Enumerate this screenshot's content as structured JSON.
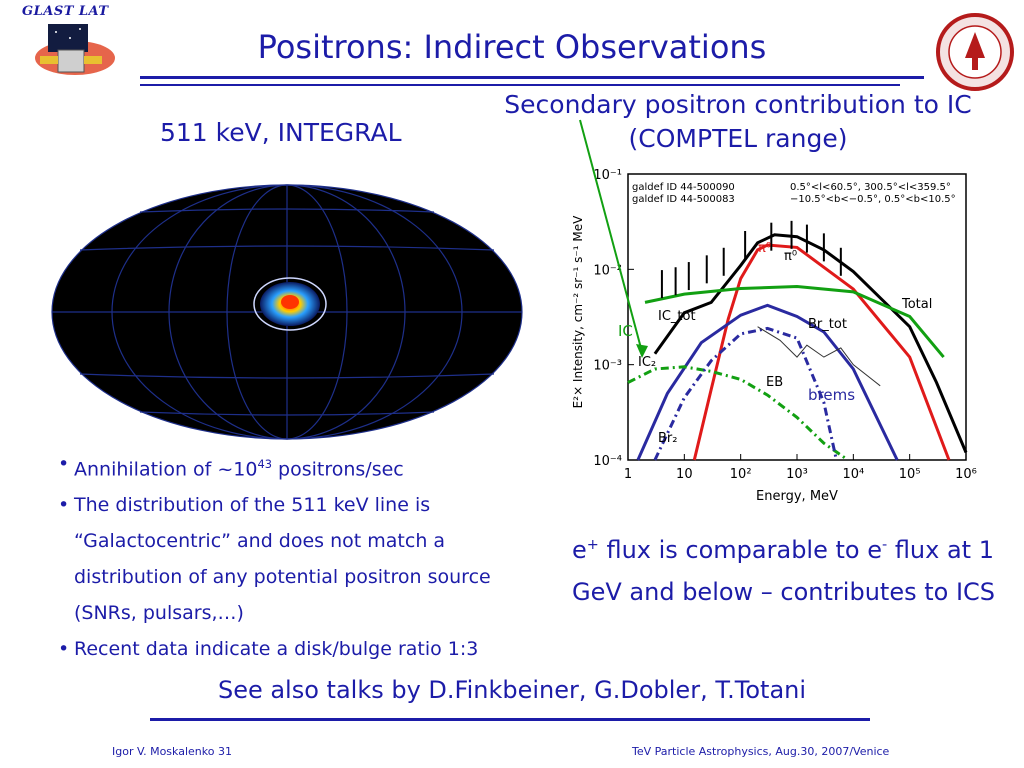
{
  "logo": {
    "text": "GLAST LAT"
  },
  "title": "Positrons: Indirect Observations",
  "left_heading": "511 keV, INTEGRAL",
  "right_heading_line1": "Secondary positron contribution to IC",
  "right_heading_line2": "(COMPTEL range)",
  "bullets": [
    {
      "pre": "Annihilation of ~10",
      "sup": "43",
      "post": " positrons/sec"
    },
    {
      "text": "The distribution of the 511 keV line is “Galactocentric” and does not match a distribution of any potential positron source (SNRs, pulsars,…)"
    },
    {
      "text": "Recent data indicate a disk/bulge ratio 1:3"
    }
  ],
  "flux": {
    "a": "e",
    "a_sup": "+",
    "b": " flux is comparable to e",
    "b_sup": "-",
    "c": " flux at 1 GeV and below – contributes to ICS"
  },
  "see_also": "See also talks by D.Finkbeiner, G.Dobler, T.Totani",
  "footer": {
    "left": "Igor V. Moskalenko  31",
    "right": "TeV Particle Astrophysics, Aug.30, 2007/Venice"
  },
  "chart_data": {
    "type": "line",
    "xlabel": "Energy, MeV",
    "ylabel": "E²× Intensity, cm⁻² sr⁻¹ s⁻¹ MeV",
    "x_scale": "log",
    "y_scale": "log",
    "xlim": [
      1,
      1000000
    ],
    "ylim": [
      0.0001,
      0.1
    ],
    "x_ticks": [
      "1",
      "10",
      "10²",
      "10³",
      "10⁴",
      "10⁵",
      "10⁶"
    ],
    "y_ticks": [
      "10⁻¹",
      "10⁻²",
      "10⁻³",
      "10⁻⁴"
    ],
    "legend_left": [
      "galdef ID 44-500090",
      "galdef ID 44-500083"
    ],
    "legend_right": [
      "0.5°<l<60.5°, 300.5°<l<359.5°",
      "−10.5°<b<−0.5°, 0.5°<b<10.5°"
    ],
    "annotations": [
      "π⁰",
      "π⁰",
      "Total",
      "IC",
      "IC_tot",
      "Br_tot",
      "IC₂",
      "EB",
      "brems",
      "Br₂"
    ],
    "series": [
      {
        "name": "Total",
        "color": "#000000",
        "x": [
          3,
          10,
          30,
          100,
          200,
          400,
          1000,
          3000,
          10000,
          100000,
          300000,
          1000000
        ],
        "y": [
          0.0013,
          0.0035,
          0.0045,
          0.011,
          0.019,
          0.023,
          0.022,
          0.016,
          0.0095,
          0.0025,
          0.00065,
          0.00012
        ]
      },
      {
        "name": "π⁰",
        "color": "#e01a1a",
        "x": [
          15,
          30,
          60,
          100,
          200,
          300,
          1000,
          10000,
          100000,
          500000
        ],
        "y": [
          0.0001,
          0.00055,
          0.003,
          0.008,
          0.016,
          0.018,
          0.017,
          0.0062,
          0.0012,
          0.0001
        ]
      },
      {
        "name": "IC_tot",
        "color": "#12a012",
        "x": [
          2,
          10,
          100,
          1000,
          10000,
          100000,
          400000
        ],
        "y": [
          0.0045,
          0.0055,
          0.0063,
          0.0066,
          0.0058,
          0.0032,
          0.0012
        ]
      },
      {
        "name": "Br_tot",
        "color": "#2a2aa0",
        "x": [
          1.5,
          5,
          20,
          100,
          300,
          1000,
          3000,
          10000,
          60000
        ],
        "y": [
          0.0001,
          0.0005,
          0.0017,
          0.0033,
          0.0042,
          0.0032,
          0.0022,
          0.0009,
          0.0001
        ]
      },
      {
        "name": "IC₂",
        "color": "#12a012",
        "x": [
          1,
          3,
          10,
          30,
          100,
          300,
          1000,
          3000,
          8000
        ],
        "y": [
          0.00065,
          0.0009,
          0.00095,
          0.00085,
          0.0007,
          0.00048,
          0.00028,
          0.00015,
          0.0001
        ]
      },
      {
        "name": "Br₂",
        "color": "#2a2aa0",
        "x": [
          3,
          10,
          30,
          100,
          300,
          1000,
          3000,
          5000
        ],
        "y": [
          0.0001,
          0.00045,
          0.0011,
          0.0021,
          0.0024,
          0.0019,
          0.0004,
          0.0001
        ]
      },
      {
        "name": "EB",
        "color": "#333333",
        "x": [
          200,
          500,
          1000,
          1500,
          3000,
          6000,
          10000,
          30000
        ],
        "y": [
          0.0025,
          0.0018,
          0.0012,
          0.0016,
          0.0012,
          0.0015,
          0.001,
          0.0006
        ]
      }
    ],
    "data_points": {
      "x": [
        4,
        7,
        12,
        25,
        50,
        120,
        350,
        800,
        1500,
        3000,
        6000
      ],
      "y": [
        0.007,
        0.0075,
        0.0085,
        0.01,
        0.012,
        0.018,
        0.022,
        0.023,
        0.021,
        0.017,
        0.012
      ]
    }
  }
}
